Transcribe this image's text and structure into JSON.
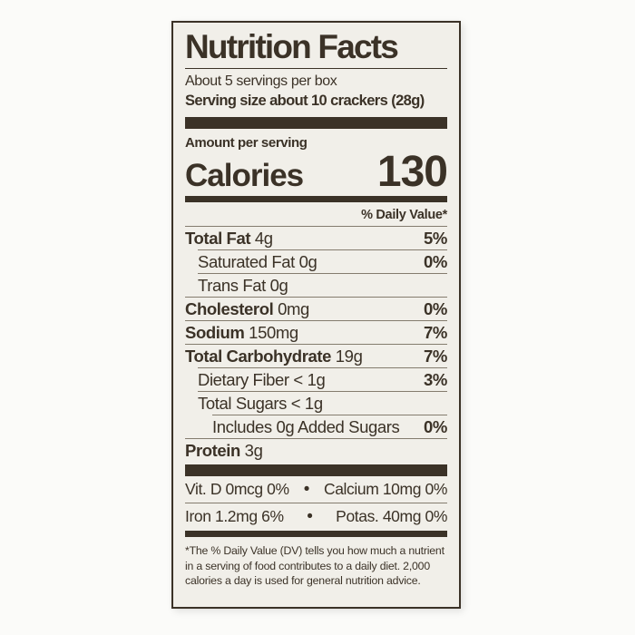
{
  "label": {
    "title": "Nutrition Facts",
    "servings_per_container": "About 5 servings per box",
    "serving_size": "Serving size about 10 crackers (28g)",
    "amount_per_serving": "Amount per serving",
    "calories_label": "Calories",
    "calories_value": "130",
    "daily_value_header": "% Daily Value*",
    "nutrients": [
      {
        "name": "Total Fat",
        "amount": "4g",
        "dv": "5%",
        "indent": 0,
        "bold": true
      },
      {
        "name": "Saturated Fat",
        "amount": "0g",
        "dv": "0%",
        "indent": 1,
        "bold": false
      },
      {
        "name": "Trans Fat",
        "amount": "0g",
        "dv": "",
        "indent": 1,
        "bold": false
      },
      {
        "name": "Cholesterol",
        "amount": "0mg",
        "dv": "0%",
        "indent": 0,
        "bold": true
      },
      {
        "name": "Sodium",
        "amount": "150mg",
        "dv": "7%",
        "indent": 0,
        "bold": true
      },
      {
        "name": "Total Carbohydrate",
        "amount": "19g",
        "dv": "7%",
        "indent": 0,
        "bold": true
      },
      {
        "name": "Dietary Fiber",
        "amount": "< 1g",
        "dv": "3%",
        "indent": 1,
        "bold": false
      },
      {
        "name": "Total Sugars",
        "amount": "< 1g",
        "dv": "",
        "indent": 1,
        "bold": false
      },
      {
        "name": "Includes 0g Added Sugars",
        "amount": "",
        "dv": "0%",
        "indent": 2,
        "bold": false
      },
      {
        "name": "Protein",
        "amount": "3g",
        "dv": "",
        "indent": 0,
        "bold": true
      }
    ],
    "micronutrients": [
      {
        "left": "Vit. D 0mcg 0%",
        "separator": "•",
        "right": "Calcium 10mg 0%"
      },
      {
        "left": "Iron 1.2mg 6%",
        "separator": "•",
        "right": "Potas. 40mg 0%"
      }
    ],
    "footnote_lines": [
      "*The % Daily Value (DV) tells you how much a nutrient",
      "in a serving of food contributes to a daily diet. 2,000",
      "calories a day is used for general nutrition advice."
    ]
  },
  "colors": {
    "ink": "#3b3227",
    "hairline": "#847c6e",
    "label_background": "#f1efe9",
    "page_background": "#fbfbf9"
  }
}
